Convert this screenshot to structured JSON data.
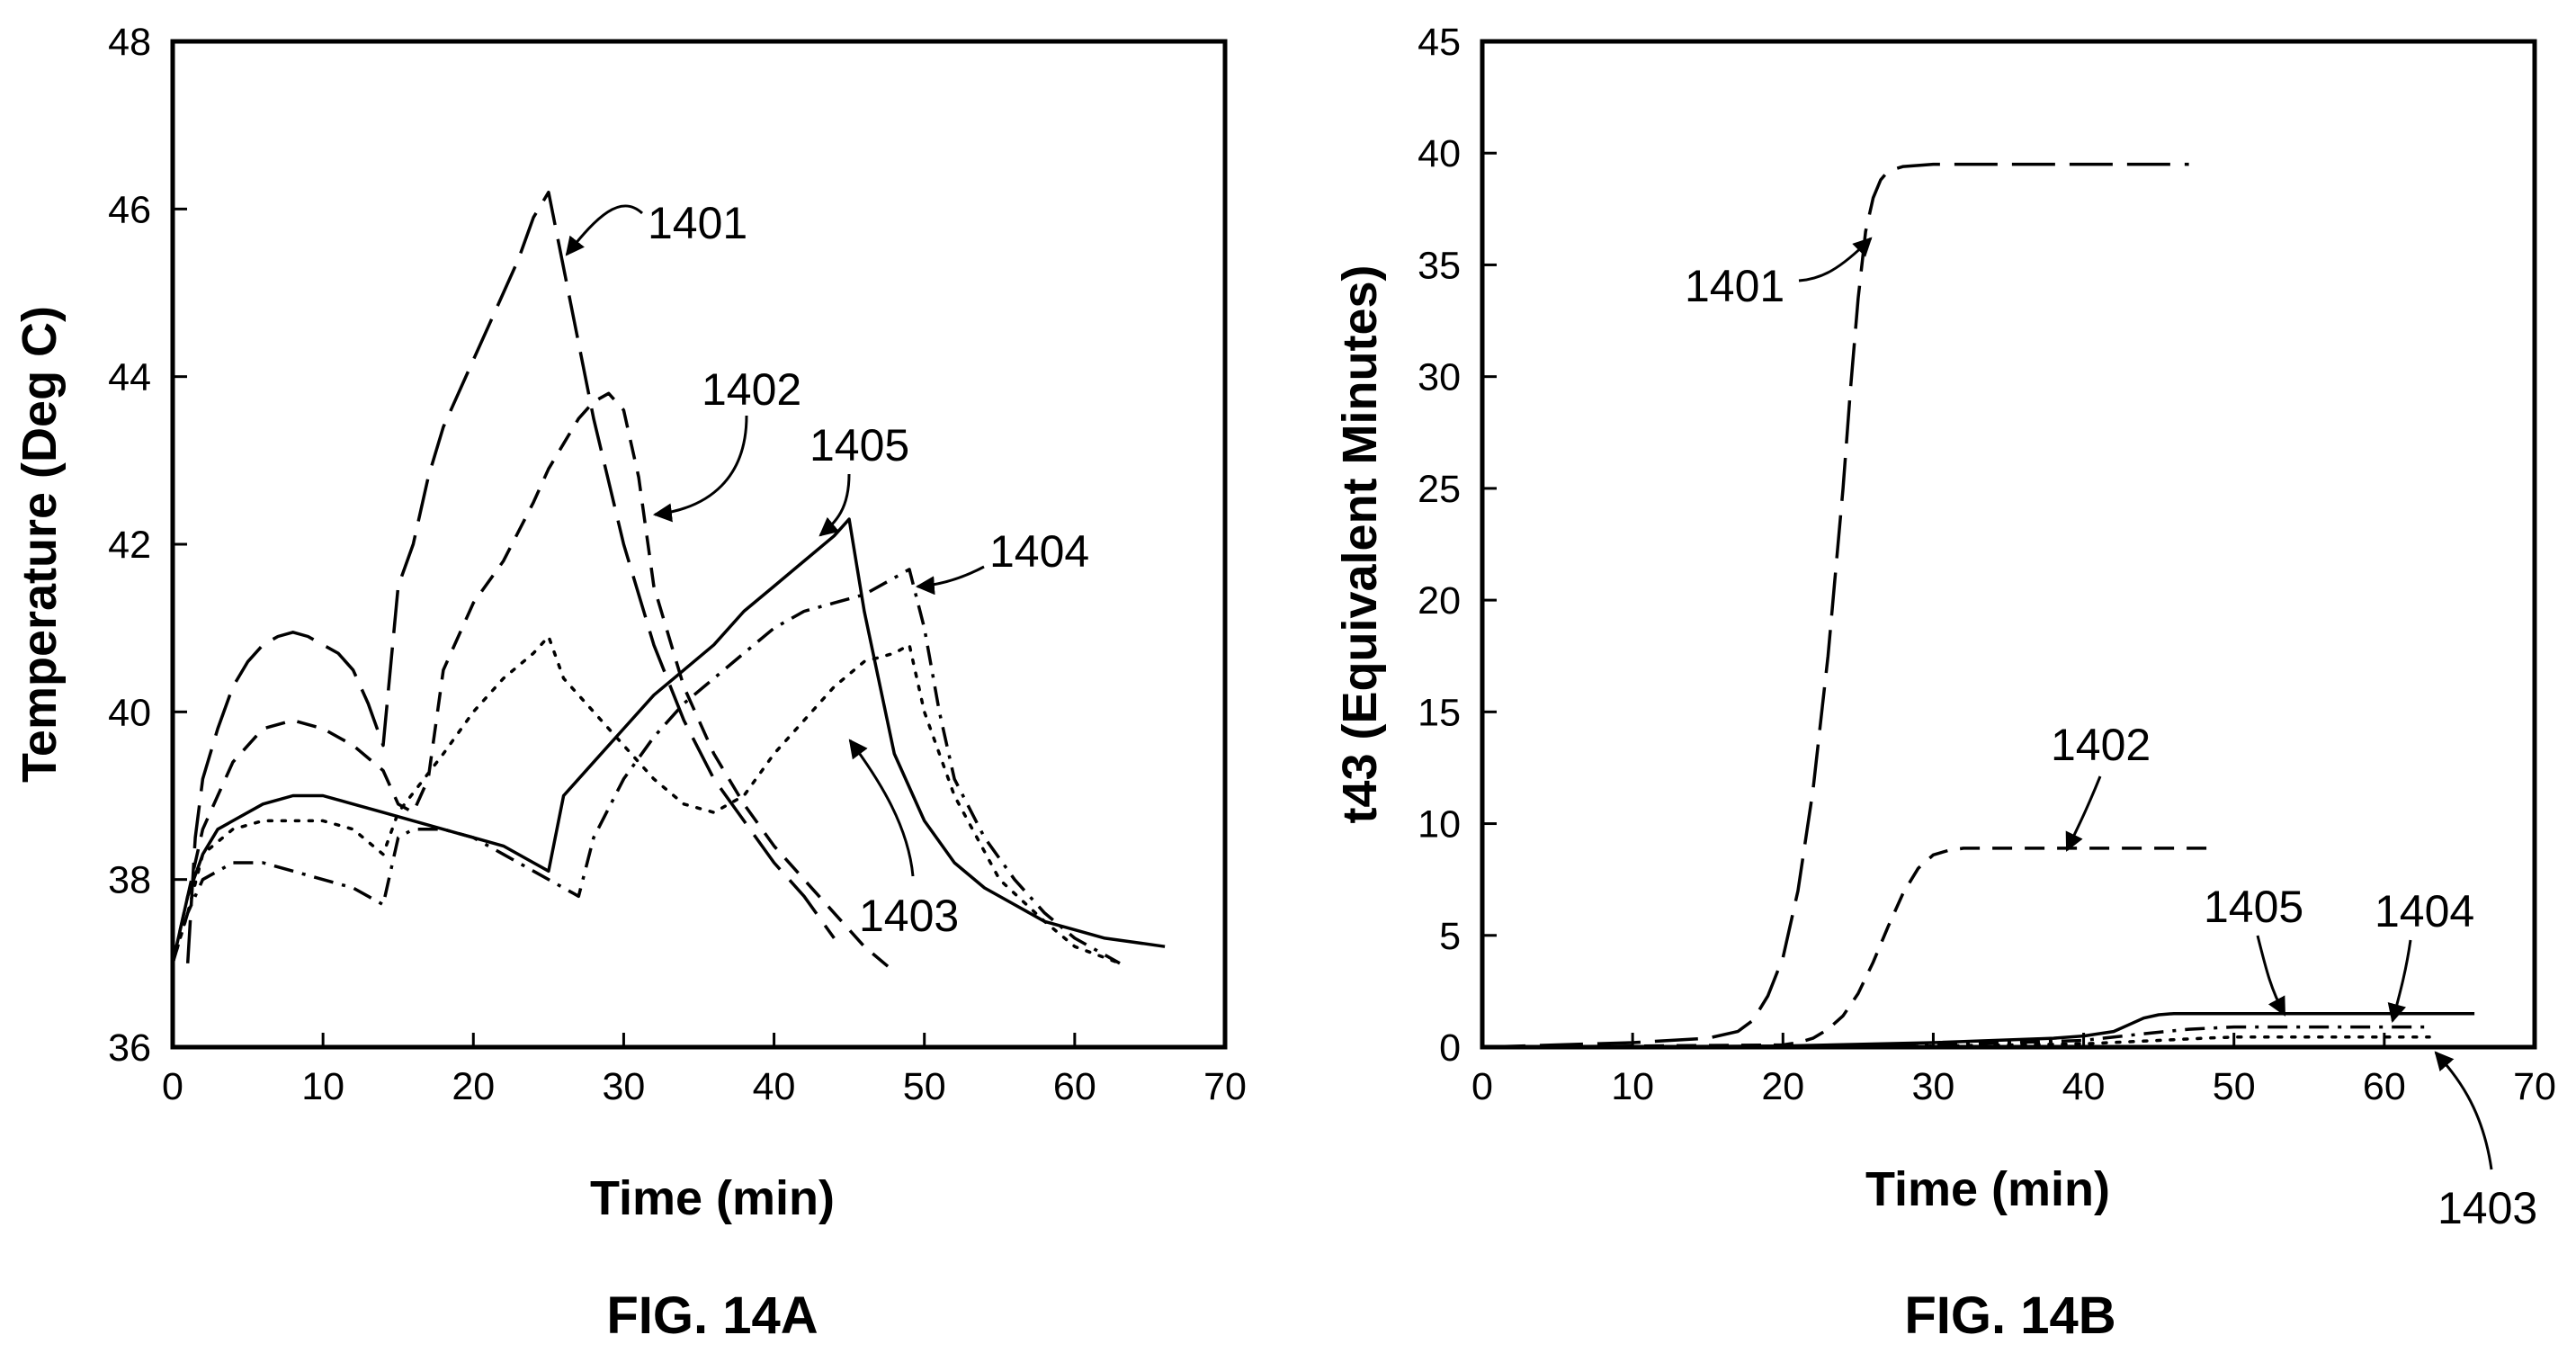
{
  "figures": [
    {
      "caption": "FIG. 14A"
    },
    {
      "caption": "FIG. 14B"
    }
  ],
  "chart_data": [
    {
      "type": "line",
      "title": "",
      "xlabel": "Time (min)",
      "ylabel": "Temperature (Deg C)",
      "xlim": [
        0,
        70
      ],
      "ylim": [
        36,
        48
      ],
      "xticks": [
        0,
        10,
        20,
        30,
        40,
        50,
        60,
        70
      ],
      "yticks": [
        36,
        38,
        40,
        42,
        44,
        46,
        48
      ],
      "grid": false,
      "series": [
        {
          "name": "1401",
          "style": "longdash",
          "x": [
            1,
            1.5,
            2,
            3,
            4,
            5,
            6,
            7,
            8,
            9,
            10,
            11,
            12,
            13,
            14,
            15,
            16,
            17,
            18,
            19,
            20,
            21,
            22,
            23,
            24,
            25,
            26,
            28,
            30,
            32,
            34,
            36,
            38,
            40,
            42,
            44
          ],
          "y": [
            37.0,
            38.5,
            39.2,
            39.8,
            40.3,
            40.6,
            40.8,
            40.9,
            40.95,
            40.9,
            40.8,
            40.7,
            40.5,
            40.1,
            39.6,
            41.5,
            42.0,
            42.8,
            43.4,
            43.8,
            44.2,
            44.6,
            45.0,
            45.4,
            45.9,
            46.2,
            45.3,
            43.5,
            42.0,
            40.8,
            39.9,
            39.2,
            38.7,
            38.2,
            37.8,
            37.3
          ]
        },
        {
          "name": "1402",
          "style": "dash",
          "x": [
            0,
            1,
            2,
            3,
            4,
            6,
            8,
            10,
            12,
            14,
            15,
            16,
            17,
            18,
            20,
            22,
            24,
            25,
            26,
            27,
            28,
            29,
            30,
            31,
            32,
            34,
            36,
            38,
            40,
            42,
            44,
            46,
            48
          ],
          "y": [
            37.0,
            37.8,
            38.6,
            39.0,
            39.4,
            39.8,
            39.9,
            39.8,
            39.6,
            39.3,
            38.9,
            38.8,
            39.2,
            40.5,
            41.3,
            41.8,
            42.5,
            42.9,
            43.2,
            43.5,
            43.7,
            43.8,
            43.6,
            42.8,
            41.5,
            40.3,
            39.5,
            38.9,
            38.4,
            38.0,
            37.6,
            37.2,
            36.9
          ]
        },
        {
          "name": "1403",
          "style": "dot",
          "x": [
            0,
            1,
            2,
            4,
            6,
            8,
            10,
            12,
            14,
            15,
            18,
            20,
            22,
            24,
            25,
            26,
            28,
            30,
            32,
            34,
            36,
            38,
            40,
            42,
            44,
            46,
            48,
            49,
            50,
            52,
            55,
            58,
            60,
            63
          ],
          "y": [
            37.0,
            37.6,
            38.3,
            38.6,
            38.7,
            38.7,
            38.7,
            38.6,
            38.3,
            38.8,
            39.5,
            40.0,
            40.4,
            40.7,
            40.9,
            40.4,
            40.0,
            39.6,
            39.2,
            38.9,
            38.8,
            39.0,
            39.5,
            39.9,
            40.3,
            40.6,
            40.7,
            40.8,
            40.0,
            39.0,
            38.0,
            37.5,
            37.2,
            37.0
          ]
        },
        {
          "name": "1404",
          "style": "dashdot",
          "x": [
            0,
            1,
            2,
            4,
            6,
            8,
            10,
            12,
            14,
            15,
            16,
            18,
            20,
            22,
            24,
            26,
            27,
            28,
            30,
            32,
            34,
            36,
            38,
            40,
            42,
            44,
            46,
            48,
            49,
            50,
            51,
            52,
            54,
            56,
            58,
            60,
            63
          ],
          "y": [
            37.0,
            37.6,
            38.0,
            38.2,
            38.2,
            38.1,
            38.0,
            37.9,
            37.7,
            38.5,
            38.6,
            38.6,
            38.5,
            38.3,
            38.1,
            37.9,
            37.8,
            38.5,
            39.2,
            39.7,
            40.1,
            40.4,
            40.7,
            41.0,
            41.2,
            41.3,
            41.4,
            41.6,
            41.7,
            41.0,
            40.0,
            39.2,
            38.5,
            38.0,
            37.6,
            37.3,
            37.0
          ]
        },
        {
          "name": "1405",
          "style": "solid",
          "x": [
            0,
            1,
            2,
            3,
            4,
            6,
            8,
            10,
            12,
            14,
            16,
            18,
            20,
            22,
            24,
            25,
            26,
            28,
            30,
            32,
            34,
            36,
            38,
            40,
            42,
            44,
            45,
            46,
            48,
            50,
            52,
            54,
            56,
            58,
            60,
            62,
            64,
            66
          ],
          "y": [
            37.0,
            37.8,
            38.3,
            38.6,
            38.7,
            38.9,
            39.0,
            39.0,
            38.9,
            38.8,
            38.7,
            38.6,
            38.5,
            38.4,
            38.2,
            38.1,
            39.0,
            39.4,
            39.8,
            40.2,
            40.5,
            40.8,
            41.2,
            41.5,
            41.8,
            42.1,
            42.3,
            41.2,
            39.5,
            38.7,
            38.2,
            37.9,
            37.7,
            37.5,
            37.4,
            37.3,
            37.25,
            37.2
          ]
        }
      ],
      "callouts": [
        "1401",
        "1402",
        "1403",
        "1404",
        "1405"
      ]
    },
    {
      "type": "line",
      "title": "",
      "xlabel": "Time (min)",
      "ylabel": "t43 (Equivalent Minutes)",
      "xlim": [
        0,
        70
      ],
      "ylim": [
        0,
        45
      ],
      "xticks": [
        0,
        10,
        20,
        30,
        40,
        50,
        60,
        70
      ],
      "yticks": [
        0,
        5,
        10,
        15,
        20,
        25,
        30,
        35,
        40,
        45
      ],
      "grid": false,
      "series": [
        {
          "name": "1401",
          "style": "longdash",
          "x": [
            0,
            5,
            10,
            15,
            17,
            18,
            19,
            20,
            21,
            22,
            23,
            24,
            24.5,
            25,
            25.5,
            26,
            26.5,
            27,
            28,
            30,
            35,
            40,
            47
          ],
          "y": [
            0,
            0.1,
            0.2,
            0.4,
            0.7,
            1.2,
            2.3,
            4.0,
            7.0,
            11.5,
            17.5,
            25.0,
            29.5,
            33.5,
            36.5,
            38.0,
            38.8,
            39.2,
            39.4,
            39.5,
            39.5,
            39.5,
            39.5
          ]
        },
        {
          "name": "1402",
          "style": "dash",
          "x": [
            0,
            10,
            20,
            21,
            22,
            23,
            24,
            25,
            26,
            27,
            28,
            29,
            30,
            31,
            32,
            35,
            40,
            49
          ],
          "y": [
            0,
            0.05,
            0.1,
            0.2,
            0.4,
            0.8,
            1.4,
            2.4,
            3.8,
            5.4,
            6.9,
            8.0,
            8.6,
            8.8,
            8.9,
            8.9,
            8.9,
            8.9
          ]
        },
        {
          "name": "1403",
          "style": "dot",
          "x": [
            0,
            20,
            30,
            40,
            45,
            48,
            50,
            55,
            63
          ],
          "y": [
            0,
            0.02,
            0.05,
            0.15,
            0.3,
            0.4,
            0.45,
            0.45,
            0.45
          ]
        },
        {
          "name": "1404",
          "style": "dashdot",
          "x": [
            0,
            20,
            30,
            40,
            44,
            47,
            50,
            55,
            63
          ],
          "y": [
            0,
            0.03,
            0.1,
            0.3,
            0.6,
            0.8,
            0.9,
            0.9,
            0.9
          ]
        },
        {
          "name": "1405",
          "style": "solid",
          "x": [
            0,
            20,
            30,
            38,
            40,
            42,
            43,
            44,
            45,
            46,
            47,
            50,
            55,
            60,
            66
          ],
          "y": [
            0,
            0.05,
            0.2,
            0.4,
            0.5,
            0.7,
            1.0,
            1.3,
            1.45,
            1.5,
            1.5,
            1.5,
            1.5,
            1.5,
            1.5
          ]
        }
      ],
      "callouts": [
        "1401",
        "1402",
        "1405",
        "1404",
        "1403"
      ]
    }
  ]
}
